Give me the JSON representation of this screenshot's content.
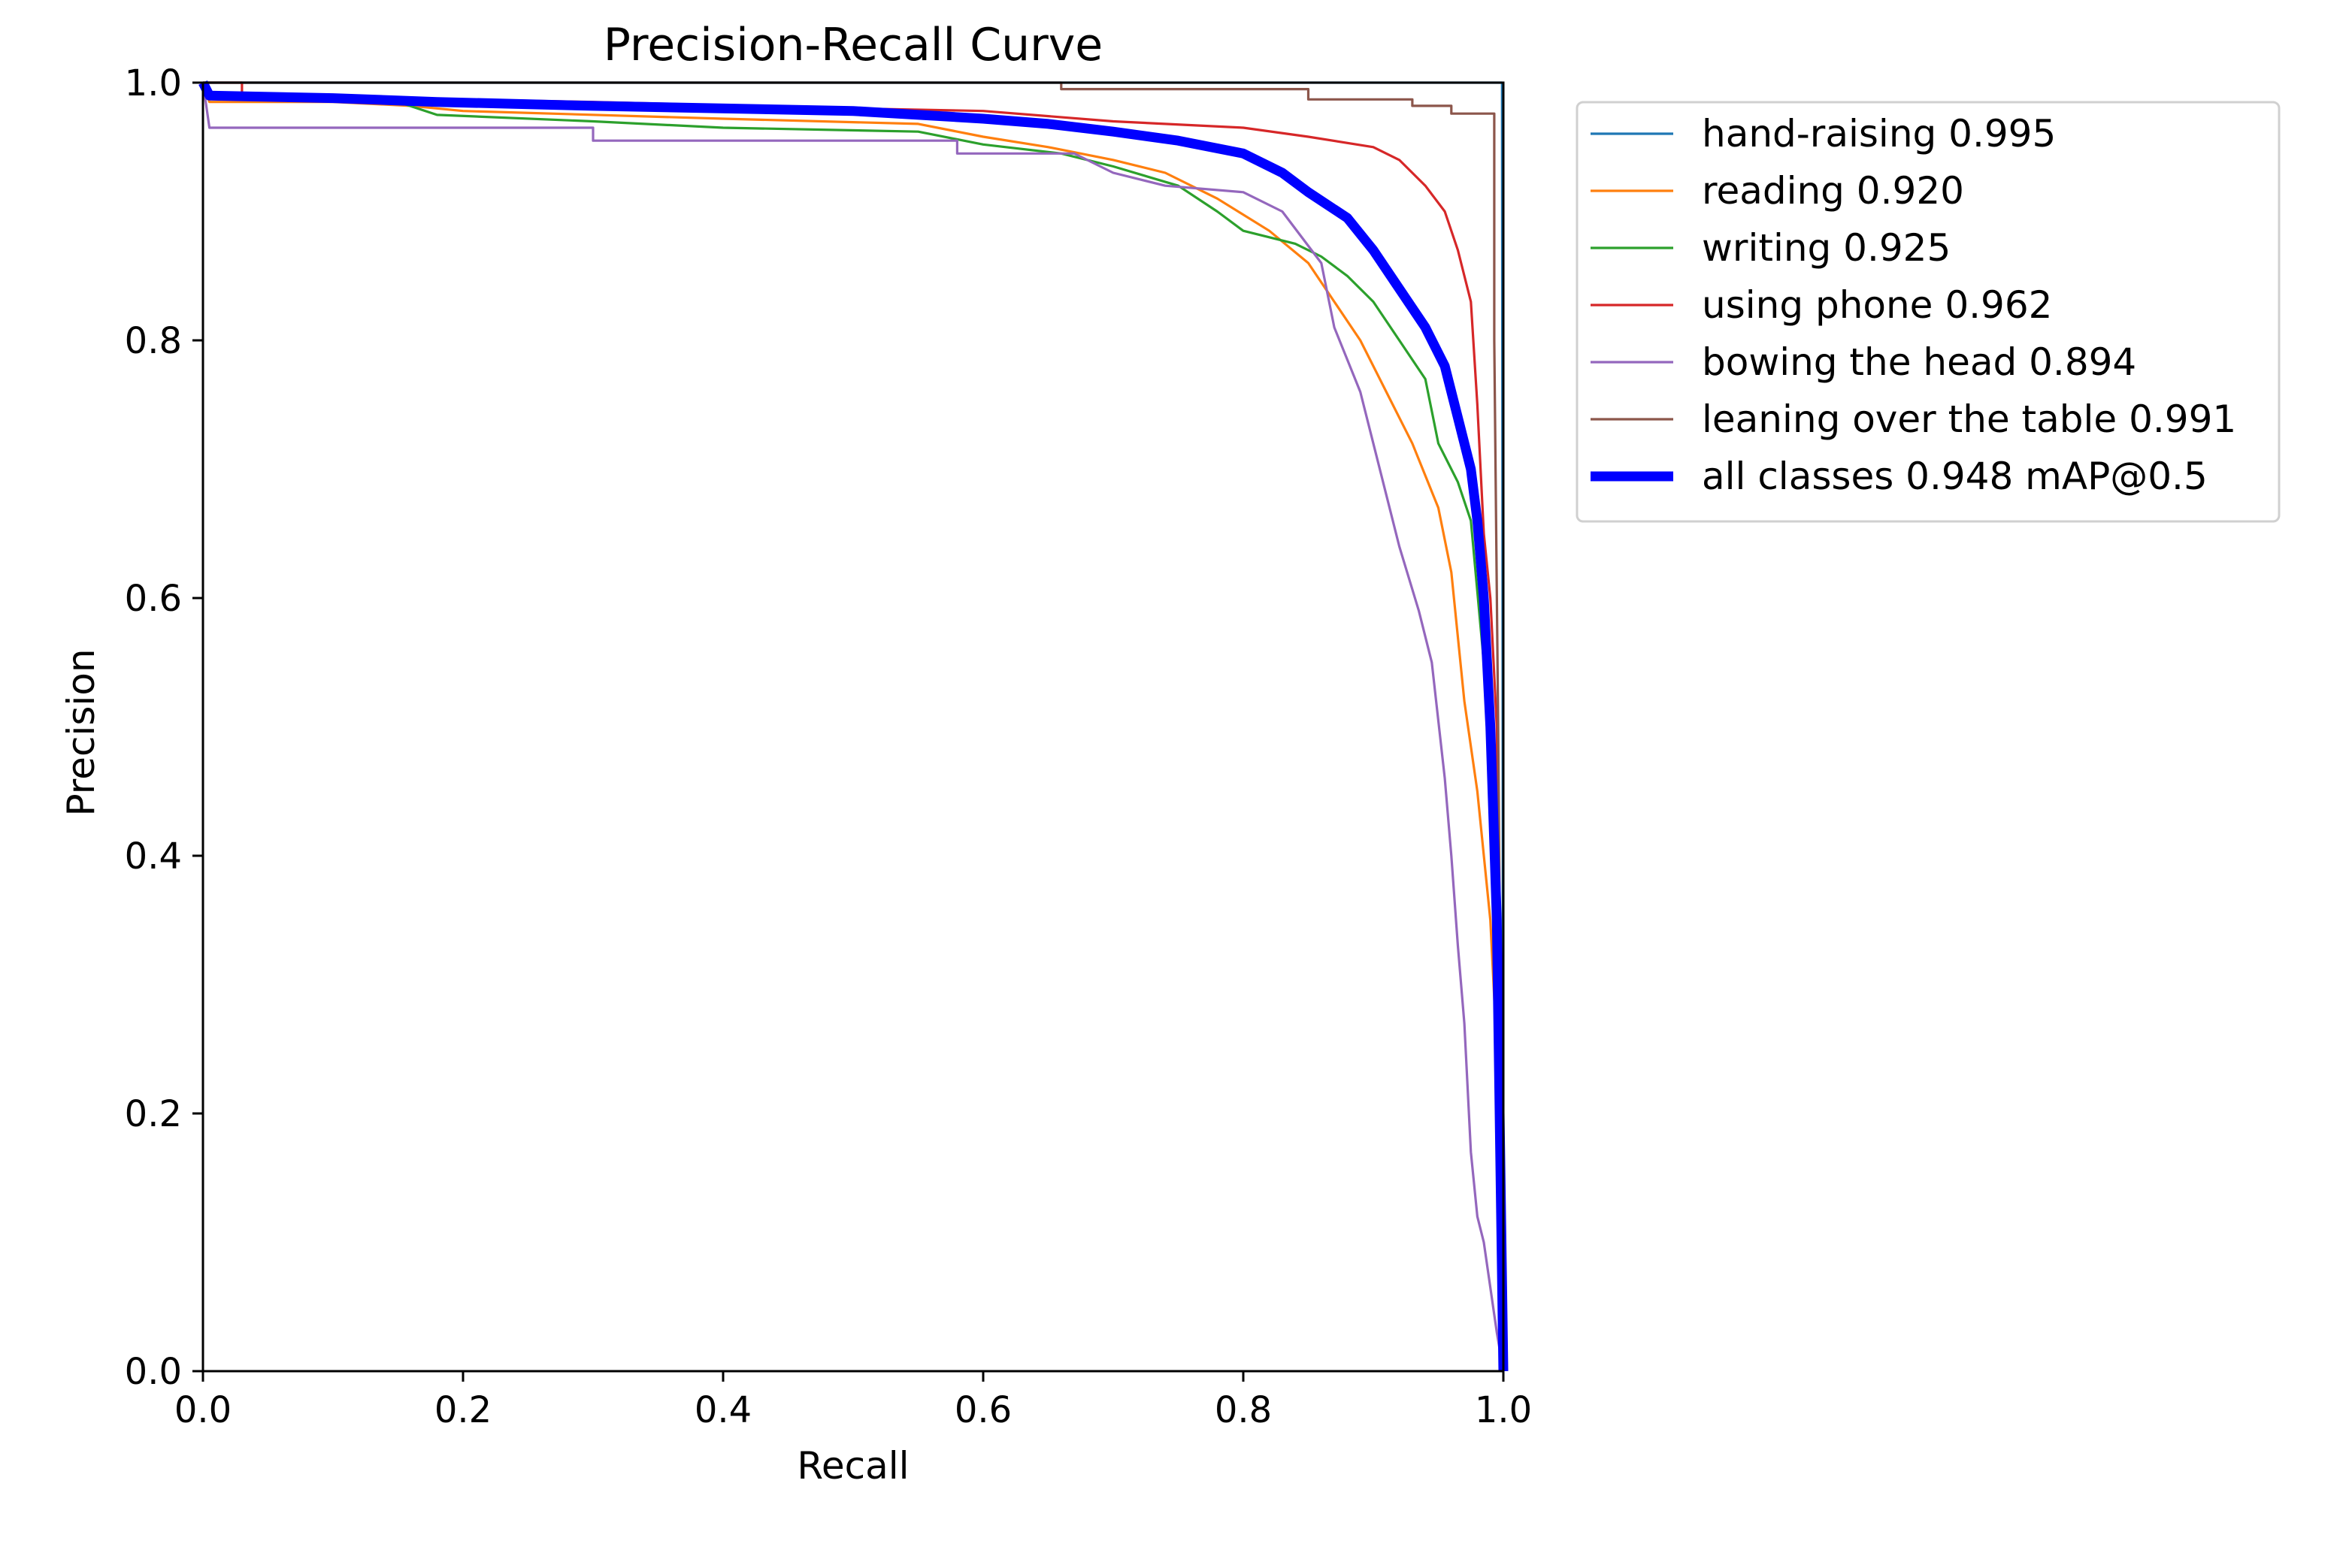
{
  "chart_data": {
    "type": "line",
    "title": "Precision-Recall Curve",
    "xlabel": "Recall",
    "ylabel": "Precision",
    "xlim": [
      0.0,
      1.0
    ],
    "ylim": [
      0.0,
      1.0
    ],
    "x_ticks": [
      "0.0",
      "0.2",
      "0.4",
      "0.6",
      "0.8",
      "1.0"
    ],
    "y_ticks": [
      "0.0",
      "0.2",
      "0.4",
      "0.6",
      "0.8",
      "1.0"
    ],
    "grid": false,
    "legend_position": "outside-right-top",
    "series": [
      {
        "name": "hand-raising 0.995",
        "color": "#1f77b4",
        "line_width": "normal",
        "points": [
          [
            0.0,
            1.0
          ],
          [
            0.999,
            1.0
          ],
          [
            0.999,
            0.99
          ],
          [
            1.0,
            0.0
          ]
        ]
      },
      {
        "name": "reading 0.920",
        "color": "#ff7f0e",
        "line_width": "normal",
        "points": [
          [
            0.0,
            1.0
          ],
          [
            0.005,
            0.985
          ],
          [
            0.1,
            0.985
          ],
          [
            0.16,
            0.982
          ],
          [
            0.2,
            0.978
          ],
          [
            0.4,
            0.972
          ],
          [
            0.55,
            0.968
          ],
          [
            0.6,
            0.958
          ],
          [
            0.65,
            0.95
          ],
          [
            0.7,
            0.94
          ],
          [
            0.74,
            0.93
          ],
          [
            0.78,
            0.91
          ],
          [
            0.82,
            0.885
          ],
          [
            0.85,
            0.86
          ],
          [
            0.87,
            0.83
          ],
          [
            0.89,
            0.8
          ],
          [
            0.91,
            0.76
          ],
          [
            0.93,
            0.72
          ],
          [
            0.95,
            0.67
          ],
          [
            0.96,
            0.62
          ],
          [
            0.97,
            0.52
          ],
          [
            0.98,
            0.45
          ],
          [
            0.99,
            0.35
          ],
          [
            0.995,
            0.25
          ],
          [
            1.0,
            0.0
          ]
        ]
      },
      {
        "name": "writing 0.925",
        "color": "#2ca02c",
        "line_width": "normal",
        "points": [
          [
            0.0,
            1.0
          ],
          [
            0.005,
            0.99
          ],
          [
            0.15,
            0.985
          ],
          [
            0.18,
            0.975
          ],
          [
            0.3,
            0.97
          ],
          [
            0.4,
            0.965
          ],
          [
            0.55,
            0.962
          ],
          [
            0.6,
            0.952
          ],
          [
            0.66,
            0.945
          ],
          [
            0.7,
            0.935
          ],
          [
            0.75,
            0.92
          ],
          [
            0.78,
            0.9
          ],
          [
            0.8,
            0.885
          ],
          [
            0.84,
            0.875
          ],
          [
            0.86,
            0.865
          ],
          [
            0.88,
            0.85
          ],
          [
            0.9,
            0.83
          ],
          [
            0.92,
            0.8
          ],
          [
            0.94,
            0.77
          ],
          [
            0.95,
            0.72
          ],
          [
            0.965,
            0.69
          ],
          [
            0.975,
            0.66
          ],
          [
            0.985,
            0.55
          ],
          [
            0.99,
            0.45
          ],
          [
            0.995,
            0.3
          ],
          [
            1.0,
            0.0
          ]
        ]
      },
      {
        "name": "using phone 0.962",
        "color": "#d62728",
        "line_width": "normal",
        "points": [
          [
            0.0,
            1.0
          ],
          [
            0.03,
            1.0
          ],
          [
            0.03,
            0.99
          ],
          [
            0.3,
            0.985
          ],
          [
            0.5,
            0.98
          ],
          [
            0.6,
            0.978
          ],
          [
            0.7,
            0.97
          ],
          [
            0.8,
            0.965
          ],
          [
            0.85,
            0.958
          ],
          [
            0.9,
            0.95
          ],
          [
            0.92,
            0.94
          ],
          [
            0.94,
            0.92
          ],
          [
            0.955,
            0.9
          ],
          [
            0.965,
            0.87
          ],
          [
            0.975,
            0.83
          ],
          [
            0.98,
            0.75
          ],
          [
            0.985,
            0.65
          ],
          [
            0.99,
            0.6
          ],
          [
            0.995,
            0.5
          ],
          [
            1.0,
            0.0
          ]
        ]
      },
      {
        "name": "bowing the head 0.894",
        "color": "#9467bd",
        "line_width": "normal",
        "points": [
          [
            0.0,
            1.0
          ],
          [
            0.005,
            0.965
          ],
          [
            0.3,
            0.965
          ],
          [
            0.3,
            0.955
          ],
          [
            0.58,
            0.955
          ],
          [
            0.58,
            0.945
          ],
          [
            0.67,
            0.945
          ],
          [
            0.7,
            0.93
          ],
          [
            0.74,
            0.92
          ],
          [
            0.8,
            0.915
          ],
          [
            0.83,
            0.9
          ],
          [
            0.86,
            0.86
          ],
          [
            0.87,
            0.81
          ],
          [
            0.89,
            0.76
          ],
          [
            0.9,
            0.72
          ],
          [
            0.91,
            0.68
          ],
          [
            0.92,
            0.64
          ],
          [
            0.935,
            0.59
          ],
          [
            0.945,
            0.55
          ],
          [
            0.955,
            0.46
          ],
          [
            0.96,
            0.4
          ],
          [
            0.965,
            0.33
          ],
          [
            0.97,
            0.27
          ],
          [
            0.975,
            0.17
          ],
          [
            0.98,
            0.12
          ],
          [
            0.985,
            0.1
          ],
          [
            0.995,
            0.03
          ],
          [
            1.0,
            0.0
          ]
        ]
      },
      {
        "name": "leaning over the table 0.991",
        "color": "#8c564b",
        "line_width": "normal",
        "points": [
          [
            0.0,
            1.0
          ],
          [
            0.66,
            1.0
          ],
          [
            0.66,
            0.995
          ],
          [
            0.85,
            0.995
          ],
          [
            0.85,
            0.987
          ],
          [
            0.93,
            0.987
          ],
          [
            0.93,
            0.982
          ],
          [
            0.96,
            0.982
          ],
          [
            0.96,
            0.976
          ],
          [
            0.993,
            0.976
          ],
          [
            0.993,
            0.8
          ],
          [
            0.996,
            0.5
          ],
          [
            1.0,
            0.0
          ]
        ]
      },
      {
        "name": "all classes 0.948 mAP@0.5",
        "color": "#0000ff",
        "line_width": "thick",
        "points": [
          [
            0.0,
            1.0
          ],
          [
            0.005,
            0.99
          ],
          [
            0.1,
            0.988
          ],
          [
            0.18,
            0.985
          ],
          [
            0.3,
            0.982
          ],
          [
            0.5,
            0.978
          ],
          [
            0.6,
            0.972
          ],
          [
            0.65,
            0.968
          ],
          [
            0.7,
            0.962
          ],
          [
            0.75,
            0.955
          ],
          [
            0.8,
            0.945
          ],
          [
            0.83,
            0.93
          ],
          [
            0.85,
            0.915
          ],
          [
            0.88,
            0.895
          ],
          [
            0.9,
            0.87
          ],
          [
            0.92,
            0.84
          ],
          [
            0.94,
            0.81
          ],
          [
            0.955,
            0.78
          ],
          [
            0.965,
            0.74
          ],
          [
            0.975,
            0.7
          ],
          [
            0.98,
            0.66
          ],
          [
            0.985,
            0.6
          ],
          [
            0.99,
            0.5
          ],
          [
            0.995,
            0.35
          ],
          [
            1.0,
            0.0
          ]
        ]
      }
    ]
  }
}
